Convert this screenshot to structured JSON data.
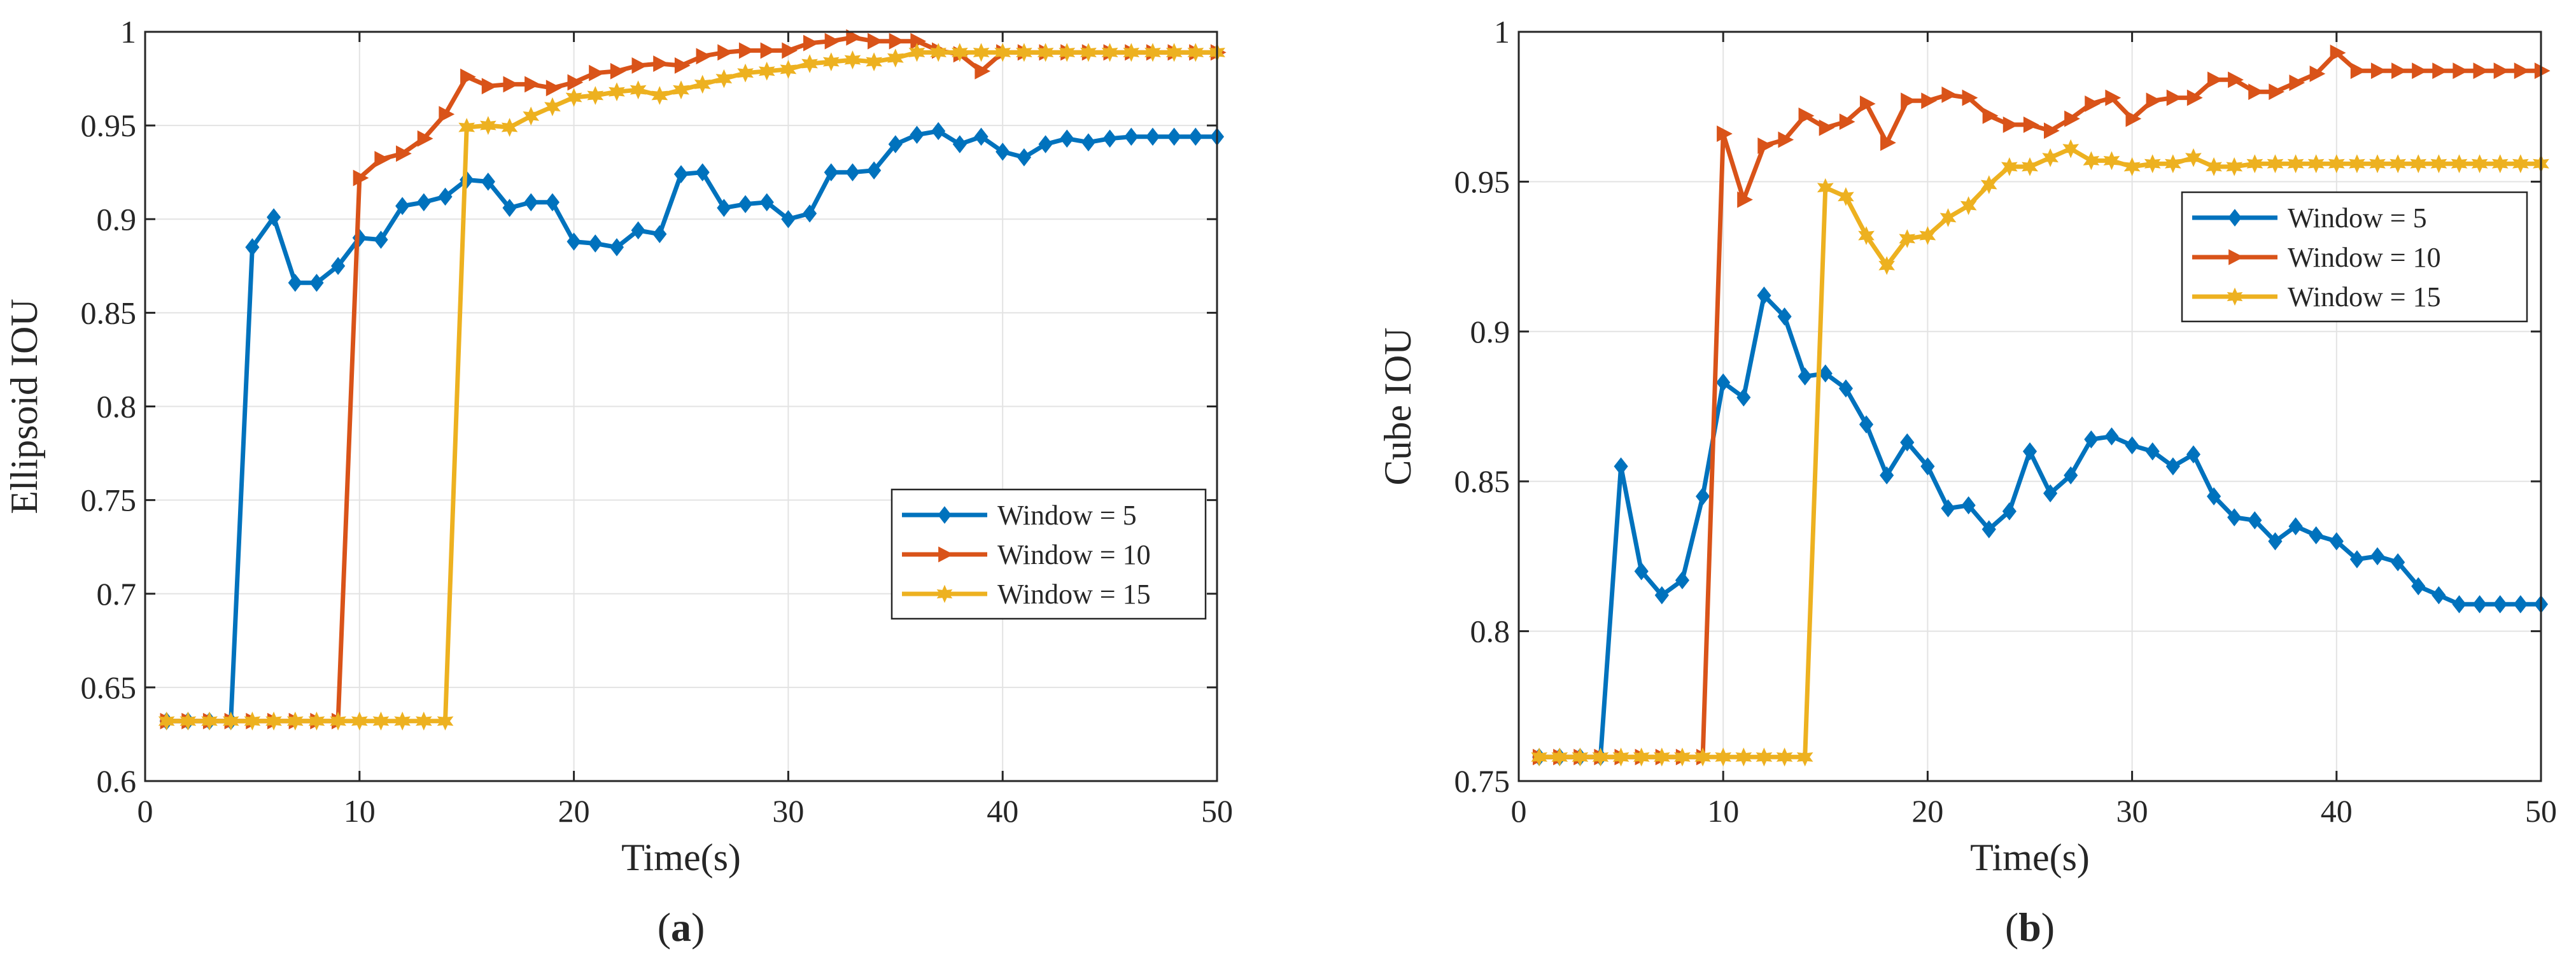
{
  "chart_data": [
    {
      "type": "line",
      "panel_label": "a",
      "title": "",
      "xlabel": "Time(s)",
      "ylabel": "Ellipsoid IOU",
      "xlim": [
        0,
        50
      ],
      "ylim": [
        0.6,
        1
      ],
      "xticks": [
        0,
        10,
        20,
        30,
        40,
        50
      ],
      "yticks": [
        0.6,
        0.65,
        0.7,
        0.75,
        0.8,
        0.85,
        0.9,
        0.95,
        1
      ],
      "ytick_labels": [
        "0.6",
        "0.65",
        "0.7",
        "0.75",
        "0.8",
        "0.85",
        "0.9",
        "0.95",
        "1"
      ],
      "grid": true,
      "legend_position": "lower-right",
      "x": [
        1,
        2,
        3,
        4,
        5,
        6,
        7,
        8,
        9,
        10,
        11,
        12,
        13,
        14,
        15,
        16,
        17,
        18,
        19,
        20,
        21,
        22,
        23,
        24,
        25,
        26,
        27,
        28,
        29,
        30,
        31,
        32,
        33,
        34,
        35,
        36,
        37,
        38,
        39,
        40,
        41,
        42,
        43,
        44,
        45,
        46,
        47,
        48,
        49,
        50
      ],
      "series": [
        {
          "name": "Window = 5",
          "color": "#0072BD",
          "marker": "diamond",
          "values": [
            0.632,
            0.632,
            0.632,
            0.632,
            0.885,
            0.901,
            0.866,
            0.866,
            0.875,
            0.89,
            0.889,
            0.907,
            0.909,
            0.912,
            0.921,
            0.92,
            0.906,
            0.909,
            0.909,
            0.888,
            0.887,
            0.885,
            0.894,
            0.892,
            0.924,
            0.925,
            0.906,
            0.908,
            0.909,
            0.9,
            0.903,
            0.925,
            0.925,
            0.926,
            0.94,
            0.945,
            0.947,
            0.94,
            0.944,
            0.936,
            0.933,
            0.94,
            0.943,
            0.941,
            0.943,
            0.944,
            0.944,
            0.944,
            0.944,
            0.944
          ]
        },
        {
          "name": "Window = 10",
          "color": "#D95319",
          "marker": "triangle-right",
          "values": [
            0.632,
            0.632,
            0.632,
            0.632,
            0.632,
            0.632,
            0.632,
            0.632,
            0.632,
            0.922,
            0.932,
            0.935,
            0.943,
            0.956,
            0.976,
            0.971,
            0.972,
            0.972,
            0.97,
            0.973,
            0.978,
            0.979,
            0.982,
            0.983,
            0.982,
            0.987,
            0.989,
            0.99,
            0.99,
            0.99,
            0.994,
            0.995,
            0.997,
            0.995,
            0.995,
            0.995,
            0.99,
            0.988,
            0.979,
            0.989,
            0.989,
            0.989,
            0.989,
            0.989,
            0.989,
            0.989,
            0.989,
            0.989,
            0.989,
            0.989
          ]
        },
        {
          "name": "Window = 15",
          "color": "#EDB120",
          "marker": "hexagram",
          "values": [
            0.632,
            0.632,
            0.632,
            0.632,
            0.632,
            0.632,
            0.632,
            0.632,
            0.632,
            0.632,
            0.632,
            0.632,
            0.632,
            0.632,
            0.949,
            0.95,
            0.949,
            0.955,
            0.96,
            0.965,
            0.966,
            0.968,
            0.969,
            0.966,
            0.969,
            0.972,
            0.975,
            0.978,
            0.979,
            0.98,
            0.983,
            0.984,
            0.985,
            0.984,
            0.986,
            0.989,
            0.989,
            0.989,
            0.989,
            0.989,
            0.989,
            0.989,
            0.989,
            0.989,
            0.989,
            0.989,
            0.989,
            0.989,
            0.989,
            0.989
          ]
        }
      ]
    },
    {
      "type": "line",
      "panel_label": "b",
      "title": "",
      "xlabel": "Time(s)",
      "ylabel": "Cube IOU",
      "xlim": [
        0,
        50
      ],
      "ylim": [
        0.75,
        1
      ],
      "xticks": [
        0,
        10,
        20,
        30,
        40,
        50
      ],
      "yticks": [
        0.75,
        0.8,
        0.85,
        0.9,
        0.95,
        1
      ],
      "ytick_labels": [
        "0.75",
        "0.8",
        "0.85",
        "0.9",
        "0.95",
        "1"
      ],
      "grid": true,
      "legend_position": "top-right",
      "x": [
        1,
        2,
        3,
        4,
        5,
        6,
        7,
        8,
        9,
        10,
        11,
        12,
        13,
        14,
        15,
        16,
        17,
        18,
        19,
        20,
        21,
        22,
        23,
        24,
        25,
        26,
        27,
        28,
        29,
        30,
        31,
        32,
        33,
        34,
        35,
        36,
        37,
        38,
        39,
        40,
        41,
        42,
        43,
        44,
        45,
        46,
        47,
        48,
        49,
        50
      ],
      "series": [
        {
          "name": "Window = 5",
          "color": "#0072BD",
          "marker": "diamond",
          "values": [
            0.758,
            0.758,
            0.758,
            0.758,
            0.855,
            0.82,
            0.812,
            0.817,
            0.845,
            0.883,
            0.878,
            0.912,
            0.905,
            0.885,
            0.886,
            0.881,
            0.869,
            0.852,
            0.863,
            0.855,
            0.841,
            0.842,
            0.834,
            0.84,
            0.86,
            0.846,
            0.852,
            0.864,
            0.865,
            0.862,
            0.86,
            0.855,
            0.859,
            0.845,
            0.838,
            0.837,
            0.83,
            0.835,
            0.832,
            0.83,
            0.824,
            0.825,
            0.823,
            0.815,
            0.812,
            0.809,
            0.809,
            0.809,
            0.809,
            0.809
          ]
        },
        {
          "name": "Window = 10",
          "color": "#D95319",
          "marker": "triangle-right",
          "values": [
            0.758,
            0.758,
            0.758,
            0.758,
            0.758,
            0.758,
            0.758,
            0.758,
            0.758,
            0.966,
            0.944,
            0.962,
            0.964,
            0.972,
            0.968,
            0.97,
            0.976,
            0.963,
            0.977,
            0.977,
            0.979,
            0.978,
            0.972,
            0.969,
            0.969,
            0.967,
            0.971,
            0.976,
            0.978,
            0.971,
            0.977,
            0.978,
            0.978,
            0.984,
            0.984,
            0.98,
            0.98,
            0.983,
            0.986,
            0.993,
            0.987,
            0.987,
            0.987,
            0.987,
            0.987,
            0.987,
            0.987,
            0.987,
            0.987,
            0.987
          ]
        },
        {
          "name": "Window = 15",
          "color": "#EDB120",
          "marker": "hexagram",
          "values": [
            0.758,
            0.758,
            0.758,
            0.758,
            0.758,
            0.758,
            0.758,
            0.758,
            0.758,
            0.758,
            0.758,
            0.758,
            0.758,
            0.758,
            0.948,
            0.945,
            0.932,
            0.922,
            0.931,
            0.932,
            0.938,
            0.942,
            0.949,
            0.955,
            0.955,
            0.958,
            0.961,
            0.957,
            0.957,
            0.955,
            0.956,
            0.956,
            0.958,
            0.955,
            0.955,
            0.956,
            0.956,
            0.956,
            0.956,
            0.956,
            0.956,
            0.956,
            0.956,
            0.956,
            0.956,
            0.956,
            0.956,
            0.956,
            0.956,
            0.956
          ]
        }
      ]
    }
  ]
}
